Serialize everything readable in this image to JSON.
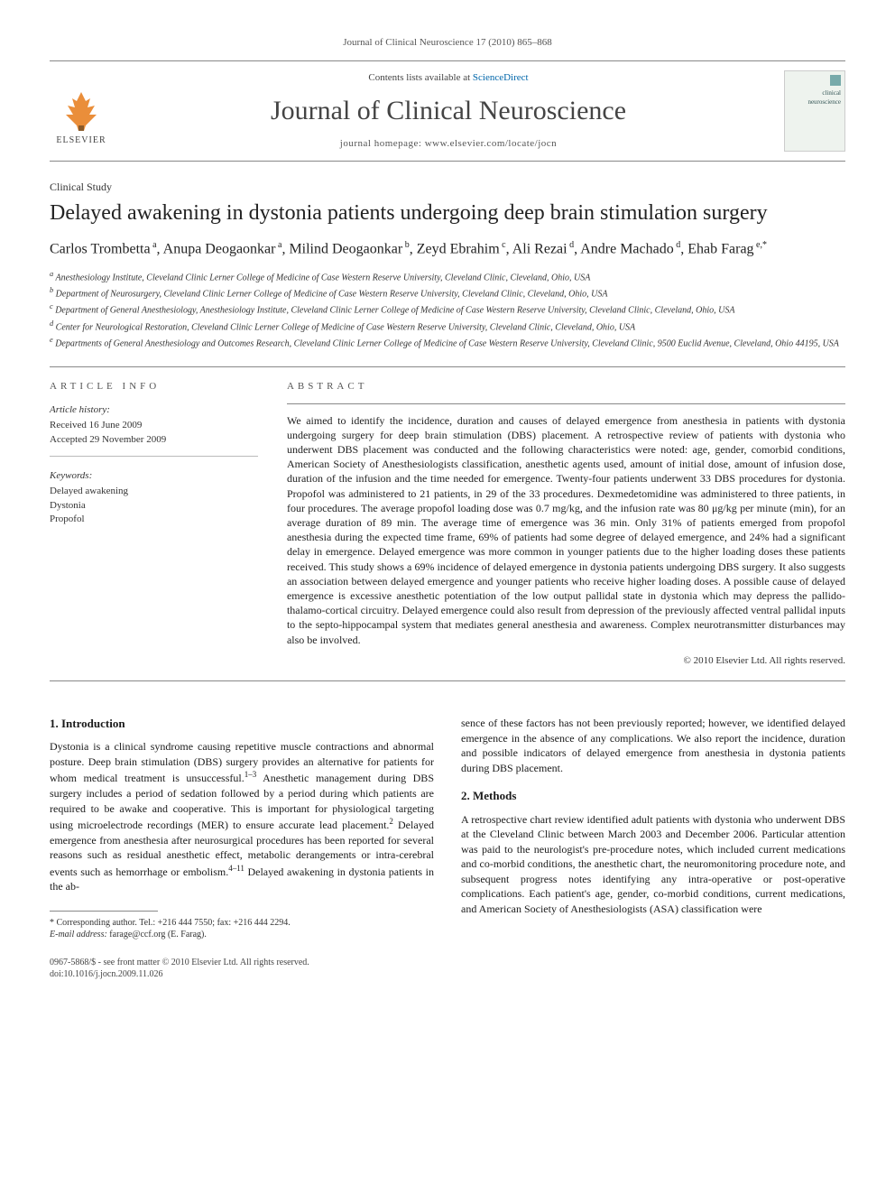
{
  "header": {
    "running_head": "Journal of Clinical Neuroscience 17 (2010) 865–868",
    "contents_prefix": "Contents lists available at ",
    "contents_link": "ScienceDirect",
    "journal_name": "Journal of Clinical Neuroscience",
    "homepage_prefix": "journal homepage: ",
    "homepage_url": "www.elsevier.com/locate/jocn",
    "publisher": "ELSEVIER",
    "cover_label": "clinical neuroscience"
  },
  "article": {
    "type": "Clinical Study",
    "title": "Delayed awakening in dystonia patients undergoing deep brain stimulation surgery",
    "authors_html": "Carlos Trombetta<sup> a</sup>, Anupa Deogaonkar<sup> a</sup>, Milind Deogaonkar<sup> b</sup>, Zeyd Ebrahim<sup> c</sup>, Ali Rezai<sup> d</sup>, Andre Machado<sup> d</sup>, Ehab Farag<sup> e,*</sup>",
    "affiliations": [
      "a Anesthesiology Institute, Cleveland Clinic Lerner College of Medicine of Case Western Reserve University, Cleveland Clinic, Cleveland, Ohio, USA",
      "b Department of Neurosurgery, Cleveland Clinic Lerner College of Medicine of Case Western Reserve University, Cleveland Clinic, Cleveland, Ohio, USA",
      "c Department of General Anesthesiology, Anesthesiology Institute, Cleveland Clinic Lerner College of Medicine of Case Western Reserve University, Cleveland Clinic, Cleveland, Ohio, USA",
      "d Center for Neurological Restoration, Cleveland Clinic Lerner College of Medicine of Case Western Reserve University, Cleveland Clinic, Cleveland, Ohio, USA",
      "e Departments of General Anesthesiology and Outcomes Research, Cleveland Clinic Lerner College of Medicine of Case Western Reserve University, Cleveland Clinic, 9500 Euclid Avenue, Cleveland, Ohio 44195, USA"
    ]
  },
  "info": {
    "label": "ARTICLE INFO",
    "history_label": "Article history:",
    "received": "Received 16 June 2009",
    "accepted": "Accepted 29 November 2009",
    "keywords_label": "Keywords:",
    "keywords": [
      "Delayed awakening",
      "Dystonia",
      "Propofol"
    ]
  },
  "abstract": {
    "label": "ABSTRACT",
    "text": "We aimed to identify the incidence, duration and causes of delayed emergence from anesthesia in patients with dystonia undergoing surgery for deep brain stimulation (DBS) placement. A retrospective review of patients with dystonia who underwent DBS placement was conducted and the following characteristics were noted: age, gender, comorbid conditions, American Society of Anesthesiologists classification, anesthetic agents used, amount of initial dose, amount of infusion dose, duration of the infusion and the time needed for emergence. Twenty-four patients underwent 33 DBS procedures for dystonia. Propofol was administered to 21 patients, in 29 of the 33 procedures. Dexmedetomidine was administered to three patients, in four procedures. The average propofol loading dose was 0.7 mg/kg, and the infusion rate was 80 μg/kg per minute (min), for an average duration of 89 min. The average time of emergence was 36 min. Only 31% of patients emerged from propofol anesthesia during the expected time frame, 69% of patients had some degree of delayed emergence, and 24% had a significant delay in emergence. Delayed emergence was more common in younger patients due to the higher loading doses these patients received. This study shows a 69% incidence of delayed emergence in dystonia patients undergoing DBS surgery. It also suggests an association between delayed emergence and younger patients who receive higher loading doses. A possible cause of delayed emergence is excessive anesthetic potentiation of the low output pallidal state in dystonia which may depress the pallido-thalamo-cortical circuitry. Delayed emergence could also result from depression of the previously affected ventral pallidal inputs to the septo-hippocampal system that mediates general anesthesia and awareness. Complex neurotransmitter disturbances may also be involved.",
    "copyright": "© 2010 Elsevier Ltd. All rights reserved."
  },
  "body": {
    "intro_heading": "1. Introduction",
    "intro_text": "Dystonia is a clinical syndrome causing repetitive muscle contractions and abnormal posture. Deep brain stimulation (DBS) surgery provides an alternative for patients for whom medical treatment is unsuccessful.1–3 Anesthetic management during DBS surgery includes a period of sedation followed by a period during which patients are required to be awake and cooperative. This is important for physiological targeting using microelectrode recordings (MER) to ensure accurate lead placement.2 Delayed emergence from anesthesia after neurosurgical procedures has been reported for several reasons such as residual anesthetic effect, metabolic derangements or intra-cerebral events such as hemorrhage or embolism.4–11 Delayed awakening in dystonia patients in the ab-",
    "col2_text1": "sence of these factors has not been previously reported; however, we identified delayed emergence in the absence of any complications. We also report the incidence, duration and possible indicators of delayed emergence from anesthesia in dystonia patients during DBS placement.",
    "methods_heading": "2. Methods",
    "methods_text": "A retrospective chart review identified adult patients with dystonia who underwent DBS at the Cleveland Clinic between March 2003 and December 2006. Particular attention was paid to the neurologist's pre-procedure notes, which included current medications and co-morbid conditions, the anesthetic chart, the neuromonitoring procedure note, and subsequent progress notes identifying any intra-operative or post-operative complications. Each patient's age, gender, co-morbid conditions, current medications, and American Society of Anesthesiologists (ASA) classification were"
  },
  "footnote": {
    "corr": "* Corresponding author. Tel.: +216 444 7550; fax: +216 444 2294.",
    "email_label": "E-mail address:",
    "email": "farage@ccf.org",
    "email_name": "(E. Farag)."
  },
  "footer": {
    "line1": "0967-5868/$ - see front matter © 2010 Elsevier Ltd. All rights reserved.",
    "line2": "doi:10.1016/j.jocn.2009.11.026"
  },
  "colors": {
    "text": "#1a1a1a",
    "muted": "#555555",
    "rule": "#888888",
    "link": "#0066aa",
    "background": "#ffffff"
  }
}
